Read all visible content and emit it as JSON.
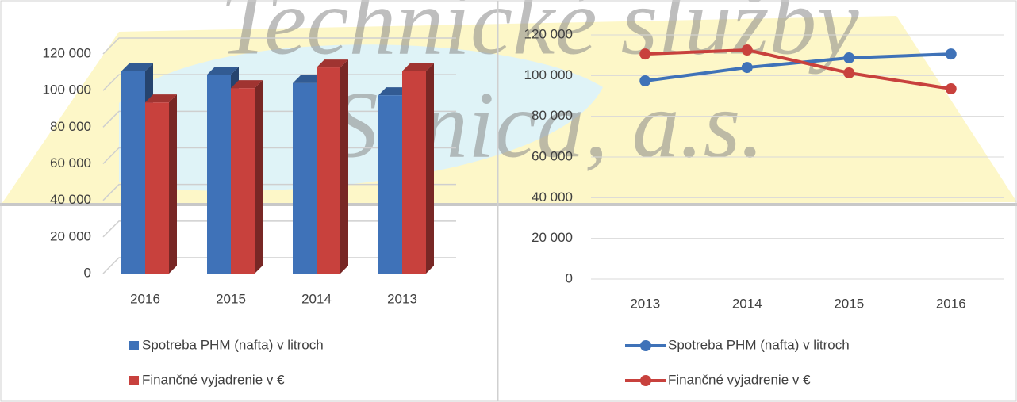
{
  "watermark": [
    "Technické služby",
    "Senica, a.s."
  ],
  "chart_data": [
    {
      "type": "bar",
      "categories": [
        "2016",
        "2015",
        "2014",
        "2013"
      ],
      "series": [
        {
          "name": "Spotreba PHM (nafta) v litroch",
          "color": "#3f72b8",
          "values": [
            110600,
            108700,
            104000,
            97400
          ]
        },
        {
          "name": "Finančné vyjadrenie v €",
          "color": "#c8413d",
          "values": [
            93500,
            101300,
            112600,
            110600
          ]
        }
      ],
      "ylim": [
        0,
        120000
      ],
      "yticks": [
        0,
        {
          "value": 20000,
          "label": "20 000"
        },
        {
          "value": 40000,
          "label": "40 000"
        },
        {
          "value": 60000,
          "label": "60 000"
        },
        {
          "value": 80000,
          "label": "80 000"
        },
        {
          "value": 100000,
          "label": "100 000"
        },
        {
          "value": 120000,
          "label": "120 000"
        }
      ],
      "grid": true
    },
    {
      "type": "line",
      "categories": [
        "2013",
        "2014",
        "2015",
        "2016"
      ],
      "series": [
        {
          "name": "Spotreba PHM (nafta) v litroch",
          "color": "#3f72b8",
          "values": [
            97400,
            104000,
            108700,
            110600
          ]
        },
        {
          "name": "Finančné vyjadrenie v €",
          "color": "#c8413d",
          "values": [
            110600,
            112600,
            101300,
            93500
          ]
        }
      ],
      "ylim": [
        0,
        120000
      ],
      "yticks": [
        0,
        {
          "value": 20000,
          "label": "20 000"
        },
        {
          "value": 40000,
          "label": "40 000"
        },
        {
          "value": 60000,
          "label": "60 000"
        },
        {
          "value": 80000,
          "label": "80 000"
        },
        {
          "value": 100000,
          "label": "100 000"
        },
        {
          "value": 120000,
          "label": "120 000"
        }
      ],
      "grid": true
    }
  ]
}
